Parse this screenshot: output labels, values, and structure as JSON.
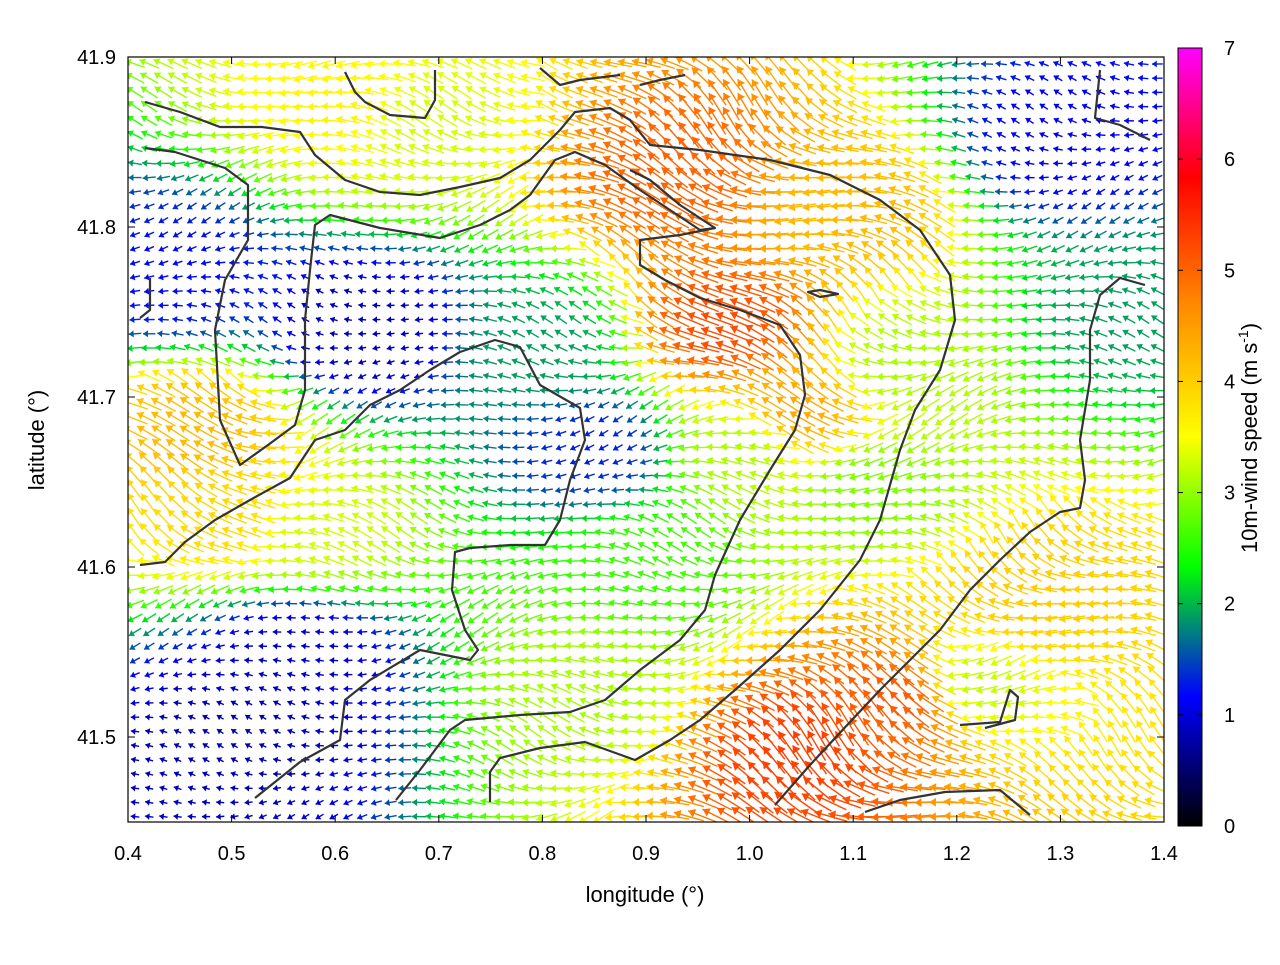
{
  "chart_data": {
    "type": "vector-field",
    "xlabel": "longitude (°)",
    "ylabel": "latitude (°)",
    "xlim": [
      0.4,
      1.4
    ],
    "ylim": [
      41.45,
      41.9
    ],
    "xticks": [
      "0.4",
      "0.5",
      "0.6",
      "0.7",
      "0.8",
      "0.9",
      "1.0",
      "1.1",
      "1.2",
      "1.3",
      "1.4"
    ],
    "xtick_values": [
      0.4,
      0.5,
      0.6,
      0.7,
      0.8,
      0.9,
      1.0,
      1.1,
      1.2,
      1.3,
      1.4
    ],
    "yticks": [
      "41.5",
      "41.6",
      "41.7",
      "41.8",
      "41.9"
    ],
    "ytick_values": [
      41.5,
      41.6,
      41.7,
      41.8,
      41.9
    ],
    "colorbar": {
      "label_main": "10m-wind speed (m s",
      "label_sup": "-1",
      "label_end": ")",
      "range": [
        0,
        7
      ],
      "ticks": [
        "0",
        "1",
        "2",
        "3",
        "4",
        "5",
        "6",
        "7"
      ],
      "tick_values": [
        0,
        1,
        2,
        3,
        4,
        5,
        6,
        7
      ],
      "palette": [
        "#000000",
        "#0000ff",
        "#00ff00",
        "#ffff00",
        "#ff8c00",
        "#ff0000",
        "#ff00ff"
      ]
    },
    "wind_speed_regions": [
      {
        "lon": 0.47,
        "lat": 41.68,
        "speed": 4.2
      },
      {
        "lon": 0.5,
        "lat": 41.63,
        "speed": 3.9
      },
      {
        "lon": 0.58,
        "lat": 41.62,
        "speed": 3.3
      },
      {
        "lon": 0.68,
        "lat": 41.86,
        "speed": 3.3
      },
      {
        "lon": 0.62,
        "lat": 41.87,
        "speed": 3.6
      },
      {
        "lon": 0.93,
        "lat": 41.83,
        "speed": 5.0
      },
      {
        "lon": 0.98,
        "lat": 41.74,
        "speed": 5.2
      },
      {
        "lon": 1.1,
        "lat": 41.81,
        "speed": 4.2
      },
      {
        "lon": 1.05,
        "lat": 41.69,
        "speed": 4.4
      },
      {
        "lon": 1.0,
        "lat": 41.67,
        "speed": 3.1
      },
      {
        "lon": 1.15,
        "lat": 41.72,
        "speed": 3.1
      },
      {
        "lon": 1.12,
        "lat": 41.65,
        "speed": 2.9
      },
      {
        "lon": 1.05,
        "lat": 41.49,
        "speed": 5.3
      },
      {
        "lon": 1.15,
        "lat": 41.52,
        "speed": 5.1
      },
      {
        "lon": 1.28,
        "lat": 41.58,
        "speed": 4.0
      },
      {
        "lon": 1.22,
        "lat": 41.53,
        "speed": 3.2
      },
      {
        "lon": 0.85,
        "lat": 41.53,
        "speed": 3.1
      },
      {
        "lon": 0.9,
        "lat": 41.6,
        "speed": 2.6
      },
      {
        "lon": 0.56,
        "lat": 41.55,
        "speed": 0.9
      },
      {
        "lon": 0.5,
        "lat": 41.5,
        "speed": 0.8
      },
      {
        "lon": 0.63,
        "lat": 41.74,
        "speed": 0.8
      },
      {
        "lon": 0.45,
        "lat": 41.77,
        "speed": 1.2
      },
      {
        "lon": 0.85,
        "lat": 41.67,
        "speed": 1.3
      },
      {
        "lon": 1.3,
        "lat": 41.85,
        "speed": 1.1
      },
      {
        "lon": 1.36,
        "lat": 41.75,
        "speed": 1.9
      },
      {
        "lon": 0.8,
        "lat": 41.73,
        "speed": 1.9
      }
    ]
  }
}
